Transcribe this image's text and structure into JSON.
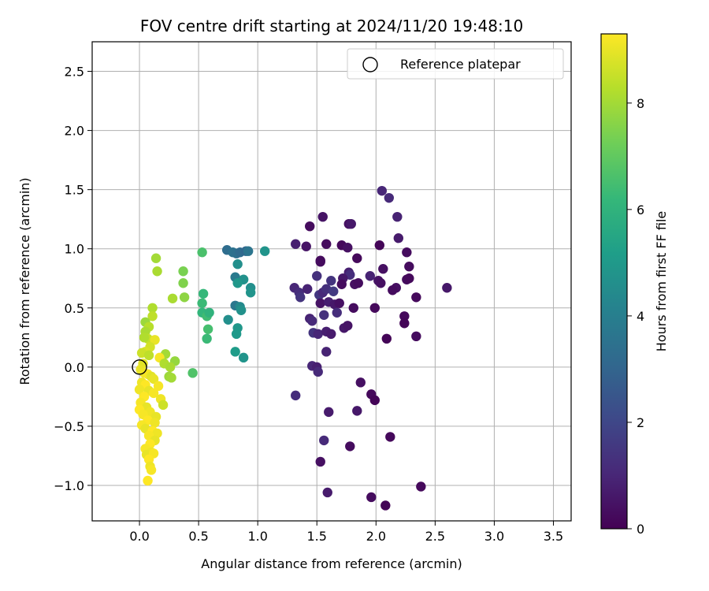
{
  "chart_data": {
    "type": "scatter",
    "title": "FOV centre drift starting at 2024/11/20 19:48:10",
    "xlabel": "Angular distance from reference (arcmin)",
    "ylabel": "Rotation from reference (arcmin)",
    "xlim": [
      -0.4,
      3.65
    ],
    "ylim": [
      -1.3,
      2.75
    ],
    "xticks": [
      0.0,
      0.5,
      1.0,
      1.5,
      2.0,
      2.5,
      3.0,
      3.5
    ],
    "xtick_labels": [
      "0.0",
      "0.5",
      "1.0",
      "1.5",
      "2.0",
      "2.5",
      "3.0",
      "3.5"
    ],
    "yticks": [
      -1.0,
      -0.5,
      0.0,
      0.5,
      1.0,
      1.5,
      2.0,
      2.5
    ],
    "ytick_labels": [
      "−1.0",
      "−0.5",
      "0.0",
      "0.5",
      "1.0",
      "1.5",
      "2.0",
      "2.5"
    ],
    "grid": true,
    "legend": {
      "placement": "top-right",
      "entries": [
        {
          "label": "Reference platepar",
          "marker": "open-circle"
        }
      ]
    },
    "reference_point": {
      "x": 0.0,
      "y": 0.0
    },
    "colorbar": {
      "label": "Hours from first FF file",
      "colormap": "viridis",
      "range": [
        0,
        9.3
      ],
      "ticks": [
        0,
        2,
        4,
        6,
        8
      ],
      "tick_labels": [
        "0",
        "2",
        "4",
        "6",
        "8"
      ]
    },
    "colormap_stops": [
      "#440154",
      "#482878",
      "#3e4989",
      "#31688e",
      "#26828e",
      "#1f9e89",
      "#35b779",
      "#6ece58",
      "#b5de2b",
      "#fde725"
    ],
    "points": [
      {
        "x": 2.05,
        "y": 1.49,
        "h": 1.0
      },
      {
        "x": 2.11,
        "y": 1.43,
        "h": 1.1
      },
      {
        "x": 1.55,
        "y": 1.27,
        "h": 0.5
      },
      {
        "x": 2.18,
        "y": 1.27,
        "h": 0.9
      },
      {
        "x": 1.44,
        "y": 1.19,
        "h": 0.3
      },
      {
        "x": 1.77,
        "y": 1.21,
        "h": 0.4
      },
      {
        "x": 1.79,
        "y": 1.21,
        "h": 0.6
      },
      {
        "x": 2.19,
        "y": 1.09,
        "h": 0.7
      },
      {
        "x": 1.32,
        "y": 1.04,
        "h": 0.8
      },
      {
        "x": 1.41,
        "y": 1.02,
        "h": 0.5
      },
      {
        "x": 1.58,
        "y": 1.04,
        "h": 0.3
      },
      {
        "x": 1.71,
        "y": 1.03,
        "h": 0.2
      },
      {
        "x": 1.76,
        "y": 1.01,
        "h": 0.4
      },
      {
        "x": 2.03,
        "y": 1.03,
        "h": 0.1
      },
      {
        "x": 2.26,
        "y": 0.97,
        "h": 0.3
      },
      {
        "x": 1.53,
        "y": 0.9,
        "h": 0.2
      },
      {
        "x": 1.53,
        "y": 0.89,
        "h": 0.3
      },
      {
        "x": 1.84,
        "y": 0.92,
        "h": 0.2
      },
      {
        "x": 2.06,
        "y": 0.83,
        "h": 0.4
      },
      {
        "x": 2.28,
        "y": 0.85,
        "h": 0.3
      },
      {
        "x": 1.77,
        "y": 0.8,
        "h": 0.8
      },
      {
        "x": 1.78,
        "y": 0.78,
        "h": 1.2
      },
      {
        "x": 1.5,
        "y": 0.77,
        "h": 1.3
      },
      {
        "x": 1.95,
        "y": 0.77,
        "h": 0.9
      },
      {
        "x": 1.72,
        "y": 0.75,
        "h": 0.6
      },
      {
        "x": 1.62,
        "y": 0.73,
        "h": 1.4
      },
      {
        "x": 2.02,
        "y": 0.73,
        "h": 0.5
      },
      {
        "x": 2.04,
        "y": 0.71,
        "h": 0.4
      },
      {
        "x": 2.26,
        "y": 0.74,
        "h": 0.3
      },
      {
        "x": 2.28,
        "y": 0.75,
        "h": 0.2
      },
      {
        "x": 1.71,
        "y": 0.7,
        "h": 0.3
      },
      {
        "x": 1.82,
        "y": 0.7,
        "h": 0.4
      },
      {
        "x": 1.85,
        "y": 0.71,
        "h": 0.3
      },
      {
        "x": 2.17,
        "y": 0.67,
        "h": 0.4
      },
      {
        "x": 2.14,
        "y": 0.65,
        "h": 0.3
      },
      {
        "x": 2.6,
        "y": 0.67,
        "h": 0.6
      },
      {
        "x": 1.31,
        "y": 0.67,
        "h": 1.0
      },
      {
        "x": 1.35,
        "y": 0.63,
        "h": 1.2
      },
      {
        "x": 1.36,
        "y": 0.59,
        "h": 1.4
      },
      {
        "x": 1.42,
        "y": 0.66,
        "h": 0.9
      },
      {
        "x": 1.52,
        "y": 0.61,
        "h": 1.5
      },
      {
        "x": 1.55,
        "y": 0.63,
        "h": 1.1
      },
      {
        "x": 1.58,
        "y": 0.66,
        "h": 1.3
      },
      {
        "x": 1.64,
        "y": 0.64,
        "h": 1.6
      },
      {
        "x": 1.53,
        "y": 0.54,
        "h": 0.5
      },
      {
        "x": 1.6,
        "y": 0.55,
        "h": 0.8
      },
      {
        "x": 1.65,
        "y": 0.53,
        "h": 0.6
      },
      {
        "x": 1.69,
        "y": 0.54,
        "h": 0.4
      },
      {
        "x": 1.81,
        "y": 0.5,
        "h": 0.3
      },
      {
        "x": 1.99,
        "y": 0.5,
        "h": 0.2
      },
      {
        "x": 2.34,
        "y": 0.59,
        "h": 0.2
      },
      {
        "x": 1.67,
        "y": 0.46,
        "h": 1.2
      },
      {
        "x": 1.56,
        "y": 0.44,
        "h": 1.3
      },
      {
        "x": 2.24,
        "y": 0.43,
        "h": 0.2
      },
      {
        "x": 2.24,
        "y": 0.37,
        "h": 0.1
      },
      {
        "x": 1.44,
        "y": 0.41,
        "h": 0.9
      },
      {
        "x": 1.46,
        "y": 0.39,
        "h": 1.1
      },
      {
        "x": 1.73,
        "y": 0.33,
        "h": 0.6
      },
      {
        "x": 1.76,
        "y": 0.35,
        "h": 0.5
      },
      {
        "x": 1.47,
        "y": 0.29,
        "h": 1.4
      },
      {
        "x": 1.51,
        "y": 0.28,
        "h": 1.0
      },
      {
        "x": 1.58,
        "y": 0.3,
        "h": 0.8
      },
      {
        "x": 1.62,
        "y": 0.28,
        "h": 0.7
      },
      {
        "x": 2.34,
        "y": 0.26,
        "h": 0.3
      },
      {
        "x": 2.09,
        "y": 0.24,
        "h": 0.1
      },
      {
        "x": 1.58,
        "y": 0.13,
        "h": 0.9
      },
      {
        "x": 1.46,
        "y": 0.01,
        "h": 1.0
      },
      {
        "x": 1.5,
        "y": 0.0,
        "h": 0.8
      },
      {
        "x": 1.51,
        "y": -0.04,
        "h": 1.1
      },
      {
        "x": 1.87,
        "y": -0.13,
        "h": 0.4
      },
      {
        "x": 1.32,
        "y": -0.24,
        "h": 1.2
      },
      {
        "x": 1.96,
        "y": -0.23,
        "h": 0.2
      },
      {
        "x": 1.99,
        "y": -0.28,
        "h": 0.1
      },
      {
        "x": 1.6,
        "y": -0.38,
        "h": 0.7
      },
      {
        "x": 1.84,
        "y": -0.37,
        "h": 0.6
      },
      {
        "x": 2.12,
        "y": -0.59,
        "h": 0.2
      },
      {
        "x": 1.56,
        "y": -0.62,
        "h": 1.1
      },
      {
        "x": 1.78,
        "y": -0.67,
        "h": 0.3
      },
      {
        "x": 1.53,
        "y": -0.8,
        "h": 0.4
      },
      {
        "x": 2.38,
        "y": -1.01,
        "h": 0.2
      },
      {
        "x": 1.59,
        "y": -1.06,
        "h": 0.7
      },
      {
        "x": 1.96,
        "y": -1.1,
        "h": 0.3
      },
      {
        "x": 2.08,
        "y": -1.17,
        "h": 0.1
      },
      {
        "x": 0.74,
        "y": 0.99,
        "h": 3.3
      },
      {
        "x": 0.79,
        "y": 0.97,
        "h": 3.5
      },
      {
        "x": 0.82,
        "y": 0.96,
        "h": 3.4
      },
      {
        "x": 0.85,
        "y": 0.97,
        "h": 3.2
      },
      {
        "x": 0.9,
        "y": 0.98,
        "h": 3.1
      },
      {
        "x": 0.92,
        "y": 0.98,
        "h": 3.6
      },
      {
        "x": 1.06,
        "y": 0.98,
        "h": 4.8
      },
      {
        "x": 0.81,
        "y": 0.76,
        "h": 3.8
      },
      {
        "x": 0.83,
        "y": 0.87,
        "h": 4.6
      },
      {
        "x": 0.88,
        "y": 0.74,
        "h": 4.7
      },
      {
        "x": 0.83,
        "y": 0.71,
        "h": 4.9
      },
      {
        "x": 0.94,
        "y": 0.67,
        "h": 4.6
      },
      {
        "x": 0.94,
        "y": 0.63,
        "h": 4.8
      },
      {
        "x": 0.81,
        "y": 0.52,
        "h": 3.7
      },
      {
        "x": 0.85,
        "y": 0.51,
        "h": 4.4
      },
      {
        "x": 0.86,
        "y": 0.48,
        "h": 4.7
      },
      {
        "x": 0.75,
        "y": 0.4,
        "h": 4.6
      },
      {
        "x": 0.83,
        "y": 0.33,
        "h": 4.9
      },
      {
        "x": 0.82,
        "y": 0.28,
        "h": 5.0
      },
      {
        "x": 0.81,
        "y": 0.13,
        "h": 5.1
      },
      {
        "x": 0.88,
        "y": 0.08,
        "h": 4.8
      },
      {
        "x": 0.53,
        "y": 0.97,
        "h": 6.6
      },
      {
        "x": 0.54,
        "y": 0.62,
        "h": 6.2
      },
      {
        "x": 0.53,
        "y": 0.54,
        "h": 6.3
      },
      {
        "x": 0.53,
        "y": 0.46,
        "h": 6.1
      },
      {
        "x": 0.57,
        "y": 0.43,
        "h": 6.4
      },
      {
        "x": 0.59,
        "y": 0.46,
        "h": 6.0
      },
      {
        "x": 0.58,
        "y": 0.32,
        "h": 6.5
      },
      {
        "x": 0.57,
        "y": 0.24,
        "h": 6.3
      },
      {
        "x": 0.45,
        "y": -0.05,
        "h": 6.7
      },
      {
        "x": 0.14,
        "y": 0.92,
        "h": 8.0
      },
      {
        "x": 0.15,
        "y": 0.81,
        "h": 8.1
      },
      {
        "x": 0.37,
        "y": 0.81,
        "h": 7.4
      },
      {
        "x": 0.37,
        "y": 0.71,
        "h": 7.5
      },
      {
        "x": 0.38,
        "y": 0.59,
        "h": 7.7
      },
      {
        "x": 0.28,
        "y": 0.58,
        "h": 8.1
      },
      {
        "x": 0.11,
        "y": 0.5,
        "h": 8.2
      },
      {
        "x": 0.11,
        "y": 0.43,
        "h": 8.4
      },
      {
        "x": 0.05,
        "y": 0.38,
        "h": 7.9
      },
      {
        "x": 0.08,
        "y": 0.34,
        "h": 8.3
      },
      {
        "x": 0.05,
        "y": 0.3,
        "h": 8.1
      },
      {
        "x": 0.07,
        "y": 0.24,
        "h": 8.5
      },
      {
        "x": 0.04,
        "y": 0.25,
        "h": 8.2
      },
      {
        "x": 0.13,
        "y": 0.23,
        "h": 9.0
      },
      {
        "x": 0.09,
        "y": 0.17,
        "h": 8.7
      },
      {
        "x": 0.05,
        "y": 0.13,
        "h": 8.8
      },
      {
        "x": 0.02,
        "y": 0.12,
        "h": 8.6
      },
      {
        "x": 0.08,
        "y": 0.1,
        "h": 8.4
      },
      {
        "x": 0.22,
        "y": 0.11,
        "h": 8.0
      },
      {
        "x": 0.17,
        "y": 0.08,
        "h": 9.2
      },
      {
        "x": 0.3,
        "y": 0.05,
        "h": 7.8
      },
      {
        "x": 0.21,
        "y": 0.03,
        "h": 8.2
      },
      {
        "x": 0.26,
        "y": 0.0,
        "h": 8.1
      },
      {
        "x": 0.25,
        "y": -0.08,
        "h": 7.9
      },
      {
        "x": 0.27,
        "y": -0.09,
        "h": 8.0
      },
      {
        "x": 0.03,
        "y": 0.03,
        "h": 8.9
      },
      {
        "x": 0.01,
        "y": -0.02,
        "h": 9.0
      },
      {
        "x": 0.04,
        "y": -0.05,
        "h": 9.1
      },
      {
        "x": 0.07,
        "y": -0.06,
        "h": 9.2
      },
      {
        "x": 0.1,
        "y": -0.08,
        "h": 8.9
      },
      {
        "x": 0.12,
        "y": -0.1,
        "h": 9.0
      },
      {
        "x": 0.02,
        "y": -0.13,
        "h": 9.1
      },
      {
        "x": 0.05,
        "y": -0.15,
        "h": 9.3
      },
      {
        "x": 0.16,
        "y": -0.16,
        "h": 9.2
      },
      {
        "x": 0.0,
        "y": -0.19,
        "h": 9.1
      },
      {
        "x": 0.08,
        "y": -0.2,
        "h": 9.0
      },
      {
        "x": 0.12,
        "y": -0.22,
        "h": 9.2
      },
      {
        "x": 0.04,
        "y": -0.25,
        "h": 9.3
      },
      {
        "x": 0.18,
        "y": -0.27,
        "h": 9.1
      },
      {
        "x": 0.01,
        "y": -0.3,
        "h": 9.2
      },
      {
        "x": 0.2,
        "y": -0.32,
        "h": 8.6
      },
      {
        "x": 0.06,
        "y": -0.34,
        "h": 9.0
      },
      {
        "x": 0.0,
        "y": -0.36,
        "h": 9.3
      },
      {
        "x": 0.09,
        "y": -0.38,
        "h": 9.1
      },
      {
        "x": 0.03,
        "y": -0.4,
        "h": 9.2
      },
      {
        "x": 0.14,
        "y": -0.42,
        "h": 9.0
      },
      {
        "x": 0.07,
        "y": -0.45,
        "h": 9.3
      },
      {
        "x": 0.13,
        "y": -0.47,
        "h": 9.1
      },
      {
        "x": 0.02,
        "y": -0.49,
        "h": 9.2
      },
      {
        "x": 0.05,
        "y": -0.52,
        "h": 9.0
      },
      {
        "x": 0.11,
        "y": -0.54,
        "h": 9.3
      },
      {
        "x": 0.15,
        "y": -0.56,
        "h": 9.1
      },
      {
        "x": 0.08,
        "y": -0.58,
        "h": 9.2
      },
      {
        "x": 0.13,
        "y": -0.62,
        "h": 9.0
      },
      {
        "x": 0.09,
        "y": -0.65,
        "h": 9.3
      },
      {
        "x": 0.05,
        "y": -0.69,
        "h": 9.2
      },
      {
        "x": 0.1,
        "y": -0.72,
        "h": 9.1
      },
      {
        "x": 0.06,
        "y": -0.74,
        "h": 9.0
      },
      {
        "x": 0.12,
        "y": -0.73,
        "h": 9.2
      },
      {
        "x": 0.08,
        "y": -0.78,
        "h": 9.3
      },
      {
        "x": 0.09,
        "y": -0.84,
        "h": 9.1
      },
      {
        "x": 0.1,
        "y": -0.87,
        "h": 9.2
      },
      {
        "x": 0.07,
        "y": -0.96,
        "h": 9.3
      }
    ]
  }
}
